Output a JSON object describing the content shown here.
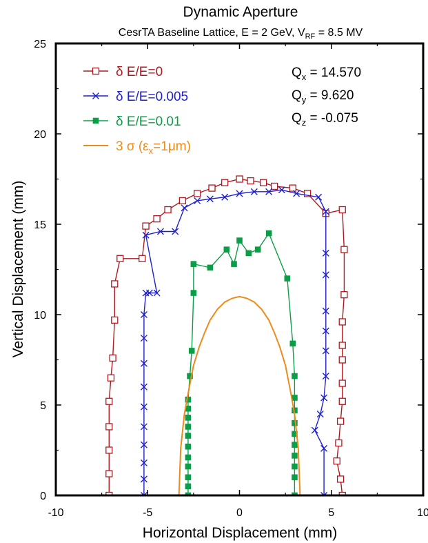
{
  "chart_data": {
    "type": "scatter",
    "title": "Dynamic Aperture",
    "subtitle": {
      "main": "CesrTA Baseline Lattice, E = 2 GeV, V",
      "sub": "RF",
      "tail": " = 8.5 MV"
    },
    "xlabel": "Horizontal Displacement (mm)",
    "ylabel": "Vertical Displacement (mm)",
    "xlim": [
      -10,
      10
    ],
    "ylim": [
      0,
      25
    ],
    "xticks": [
      -10,
      -5,
      0,
      5,
      10
    ],
    "yticks": [
      0,
      5,
      10,
      15,
      20,
      25
    ],
    "grid": false,
    "legend_position": "top-left",
    "annotations": [
      {
        "main": "Q",
        "sub": "x",
        "value": " = 14.570"
      },
      {
        "main": "Q",
        "sub": "y",
        "value": " = 9.620"
      },
      {
        "main": "Q",
        "sub": "z",
        "value": " = -0.075"
      }
    ],
    "series": [
      {
        "name": "δ E/E=0",
        "color": "#b0191e",
        "marker": "open-square",
        "legend": {
          "sym": "δ",
          "rest": " E/E=0"
        },
        "x": [
          -7.1,
          -7.1,
          -7.1,
          -7.1,
          -7.1,
          -7.0,
          -6.9,
          -6.8,
          -6.8,
          -6.5,
          -5.3,
          -5.1,
          -4.5,
          -3.9,
          -3.1,
          -2.3,
          -1.5,
          -0.8,
          0,
          0.6,
          1.3,
          1.9,
          2.9,
          3.7,
          4.7,
          5.6,
          5.7,
          5.7,
          5.6,
          5.6,
          5.6,
          5.6,
          5.6,
          5.5,
          5.4,
          5.3,
          5.5,
          5.6
        ],
        "y": [
          0,
          1.2,
          2.5,
          3.8,
          5.2,
          6.5,
          7.6,
          9.7,
          11.7,
          13.1,
          13.1,
          14.9,
          15.3,
          15.8,
          16.3,
          16.7,
          17.0,
          17.3,
          17.5,
          17.4,
          17.3,
          17.1,
          17.0,
          16.7,
          15.6,
          15.8,
          13.6,
          11.1,
          9.6,
          8.3,
          7.5,
          6.2,
          5.2,
          4.1,
          2.9,
          1.9,
          0.9,
          0
        ]
      },
      {
        "name": "δ E/E=0.005",
        "color": "#1f1fd0",
        "marker": "x",
        "legend": {
          "sym": "δ",
          "rest": " E/E=0.005"
        },
        "x": [
          -5.2,
          -5.2,
          -5.2,
          -5.2,
          -5.2,
          -5.2,
          -5.2,
          -5.2,
          -5.2,
          -5.2,
          -5.1,
          -4.9,
          -4.5,
          -5.1,
          -4.3,
          -3.5,
          -3.0,
          -2.3,
          -1.6,
          -0.8,
          0,
          0.8,
          1.6,
          2.3,
          3.1,
          4.3,
          4.7,
          4.7,
          4.7,
          4.7,
          4.7,
          4.7,
          4.7,
          4.6,
          4.4,
          4.1,
          4.6,
          4.6
        ],
        "y": [
          0,
          0.9,
          1.8,
          2.8,
          3.8,
          4.9,
          6.0,
          7.3,
          8.7,
          10.0,
          11.2,
          11.2,
          11.2,
          14.4,
          14.6,
          14.6,
          15.9,
          16.3,
          16.4,
          16.5,
          16.7,
          16.8,
          16.8,
          16.9,
          16.7,
          16.5,
          15.7,
          13.4,
          12.2,
          10.2,
          9.1,
          8.0,
          6.6,
          5.4,
          4.5,
          3.6,
          2.6,
          0
        ]
      },
      {
        "name": "δ E/E=0.01",
        "color": "#0a9e46",
        "marker": "filled-square",
        "legend": {
          "sym": "δ",
          "rest": " E/E=0.01"
        },
        "x": [
          -2.8,
          -2.8,
          -2.8,
          -2.8,
          -2.8,
          -2.8,
          -2.8,
          -2.8,
          -2.8,
          -2.8,
          -2.8,
          -2.7,
          -2.6,
          -2.5,
          -2.5,
          -1.6,
          -0.7,
          -0.3,
          0,
          0.5,
          1.0,
          1.6,
          2.6,
          2.9,
          3.0,
          3.0,
          3.0,
          3.0,
          3.0,
          3.0,
          3.0,
          3.0,
          3.0,
          3.0
        ],
        "y": [
          0,
          0.5,
          1.0,
          1.6,
          2.1,
          2.7,
          3.3,
          3.8,
          4.3,
          4.8,
          5.3,
          6.6,
          8.0,
          11.2,
          12.8,
          12.6,
          13.6,
          12.8,
          14.1,
          13.4,
          13.6,
          14.5,
          12.0,
          8.4,
          6.6,
          5.4,
          4.7,
          4.0,
          3.4,
          2.8,
          2.2,
          1.6,
          1.0,
          0
        ]
      },
      {
        "name": "3 σ (ε",
        "color": "#ee8a1a",
        "marker": "line",
        "legend": {
          "sym": "3 σ (ε",
          "sub": "x",
          "rest": "=1μm)"
        },
        "x": [
          -3.3,
          -3.2,
          -3.0,
          -2.75,
          -2.5,
          -2.2,
          -1.9,
          -1.6,
          -1.2,
          -0.8,
          -0.4,
          0,
          0.4,
          0.8,
          1.2,
          1.6,
          1.9,
          2.2,
          2.5,
          2.75,
          3.0,
          3.2,
          3.3
        ],
        "y": [
          0,
          2.6,
          4.5,
          5.9,
          7.2,
          8.2,
          9.0,
          9.7,
          10.3,
          10.7,
          10.9,
          11.0,
          10.9,
          10.7,
          10.3,
          9.7,
          9.0,
          8.2,
          7.2,
          5.9,
          4.5,
          2.6,
          0
        ]
      }
    ]
  }
}
